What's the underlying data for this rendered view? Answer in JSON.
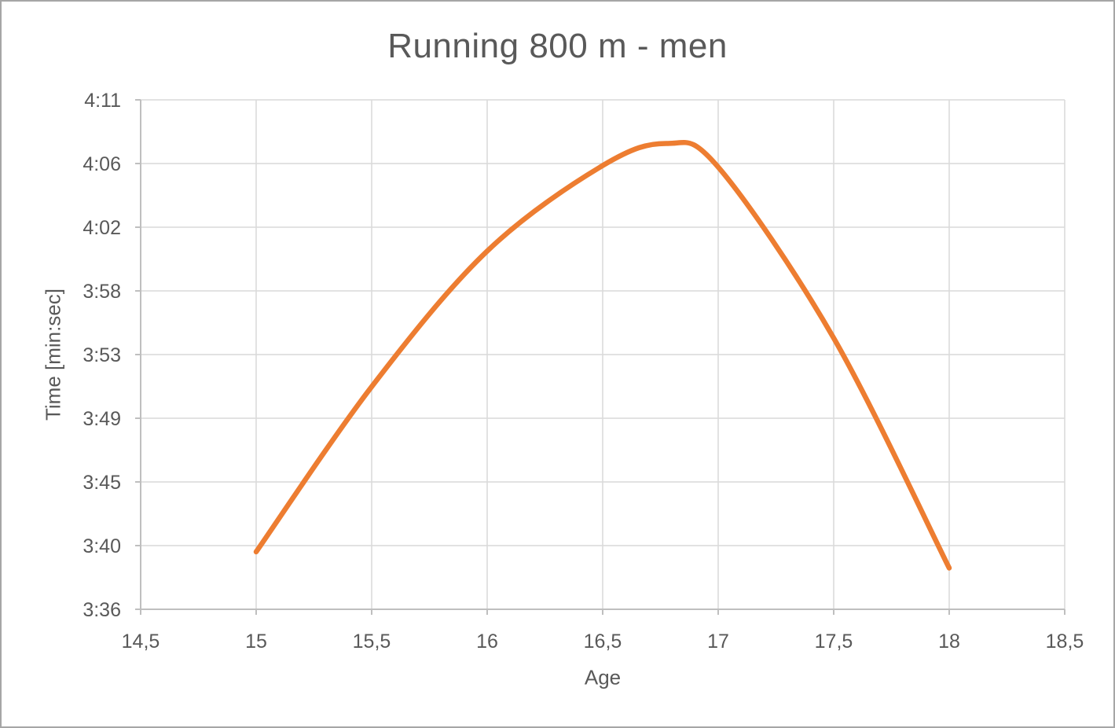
{
  "colors": {
    "accent": "#ED7D31",
    "grid": "#D9D9D9",
    "axis": "#BFBFBF",
    "text": "#595959",
    "border": "#A6A6A6",
    "background": "#FFFFFF"
  },
  "chart_data": {
    "type": "line",
    "title": "Running 800 m - men",
    "xlabel": "Age",
    "ylabel": "Time [min:sec]",
    "grid": true,
    "legend": "none",
    "xlim": [
      14.5,
      18.5
    ],
    "ylim_seconds": [
      216,
      250.56
    ],
    "x_ticks": [
      {
        "label": "14,5",
        "value": 14.5
      },
      {
        "label": "15",
        "value": 15
      },
      {
        "label": "15,5",
        "value": 15.5
      },
      {
        "label": "16",
        "value": 16
      },
      {
        "label": "16,5",
        "value": 16.5
      },
      {
        "label": "17",
        "value": 17
      },
      {
        "label": "17,5",
        "value": 17.5
      },
      {
        "label": "18",
        "value": 18
      },
      {
        "label": "18,5",
        "value": 18.5
      }
    ],
    "y_ticks": [
      {
        "label": "4:11",
        "seconds": 250.56
      },
      {
        "label": "4:06",
        "seconds": 246.24
      },
      {
        "label": "4:02",
        "seconds": 241.92
      },
      {
        "label": "3:58",
        "seconds": 237.6
      },
      {
        "label": "3:53",
        "seconds": 233.28
      },
      {
        "label": "3:49",
        "seconds": 228.96
      },
      {
        "label": "3:45",
        "seconds": 224.64
      },
      {
        "label": "3:40",
        "seconds": 220.32
      },
      {
        "label": "3:36",
        "seconds": 216.0
      }
    ],
    "series": [
      {
        "name": "Running 800 m - men",
        "color": "#ED7D31",
        "smooth": true,
        "points": [
          {
            "age": 15,
            "time": "3:39.9",
            "seconds": 219.9
          },
          {
            "age": 15.5,
            "time": "3:51.1",
            "seconds": 231.1
          },
          {
            "age": 16,
            "time": "4:00.3",
            "seconds": 240.3
          },
          {
            "age": 16.5,
            "time": "4:06.1",
            "seconds": 246.1
          },
          {
            "age": 16.78,
            "time": "4:07.6",
            "seconds": 247.6
          },
          {
            "age": 17,
            "time": "4:06.0",
            "seconds": 246.0
          },
          {
            "age": 17.5,
            "time": "3:54.4",
            "seconds": 234.4
          },
          {
            "age": 18,
            "time": "3:38.8",
            "seconds": 218.8
          }
        ]
      }
    ]
  }
}
